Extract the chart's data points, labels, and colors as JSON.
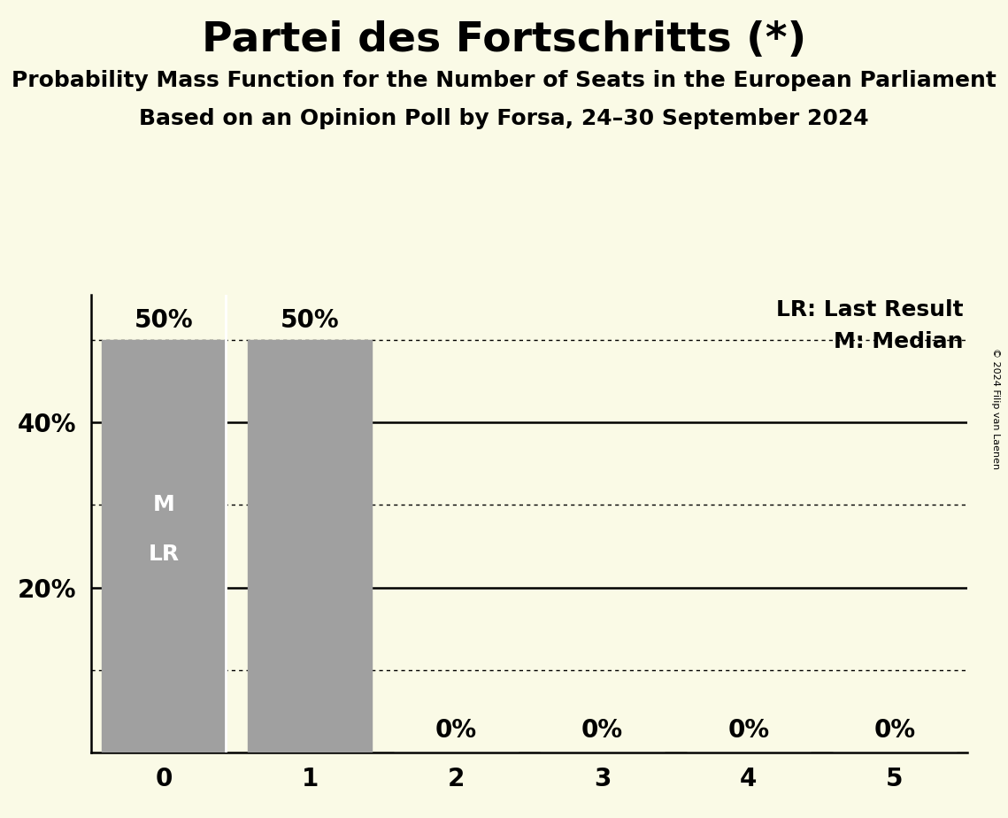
{
  "title": "Partei des Fortschritts (*)",
  "subtitle1": "Probability Mass Function for the Number of Seats in the European Parliament",
  "subtitle2": "Based on an Opinion Poll by Forsa, 24–30 September 2024",
  "copyright": "© 2024 Filip van Laenen",
  "categories": [
    0,
    1,
    2,
    3,
    4,
    5
  ],
  "values": [
    0.5,
    0.5,
    0.0,
    0.0,
    0.0,
    0.0
  ],
  "bar_color": "#a0a0a0",
  "background_color": "#fafae6",
  "legend_lr": "LR: Last Result",
  "legend_m": "M: Median",
  "bar_labels": [
    "50%",
    "50%",
    "0%",
    "0%",
    "0%",
    "0%"
  ],
  "ylim": [
    0,
    0.555
  ],
  "xlim": [
    -0.5,
    5.5
  ],
  "solid_grid_values": [
    0.2,
    0.4
  ],
  "dotted_grid_values": [
    0.1,
    0.3,
    0.5
  ],
  "bar_label_fontsize": 20,
  "title_fontsize": 34,
  "subtitle1_fontsize": 18,
  "subtitle2_fontsize": 18,
  "axis_tick_fontsize": 20,
  "legend_fontsize": 18,
  "bar_text_fontsize": 18,
  "copyright_fontsize": 8
}
